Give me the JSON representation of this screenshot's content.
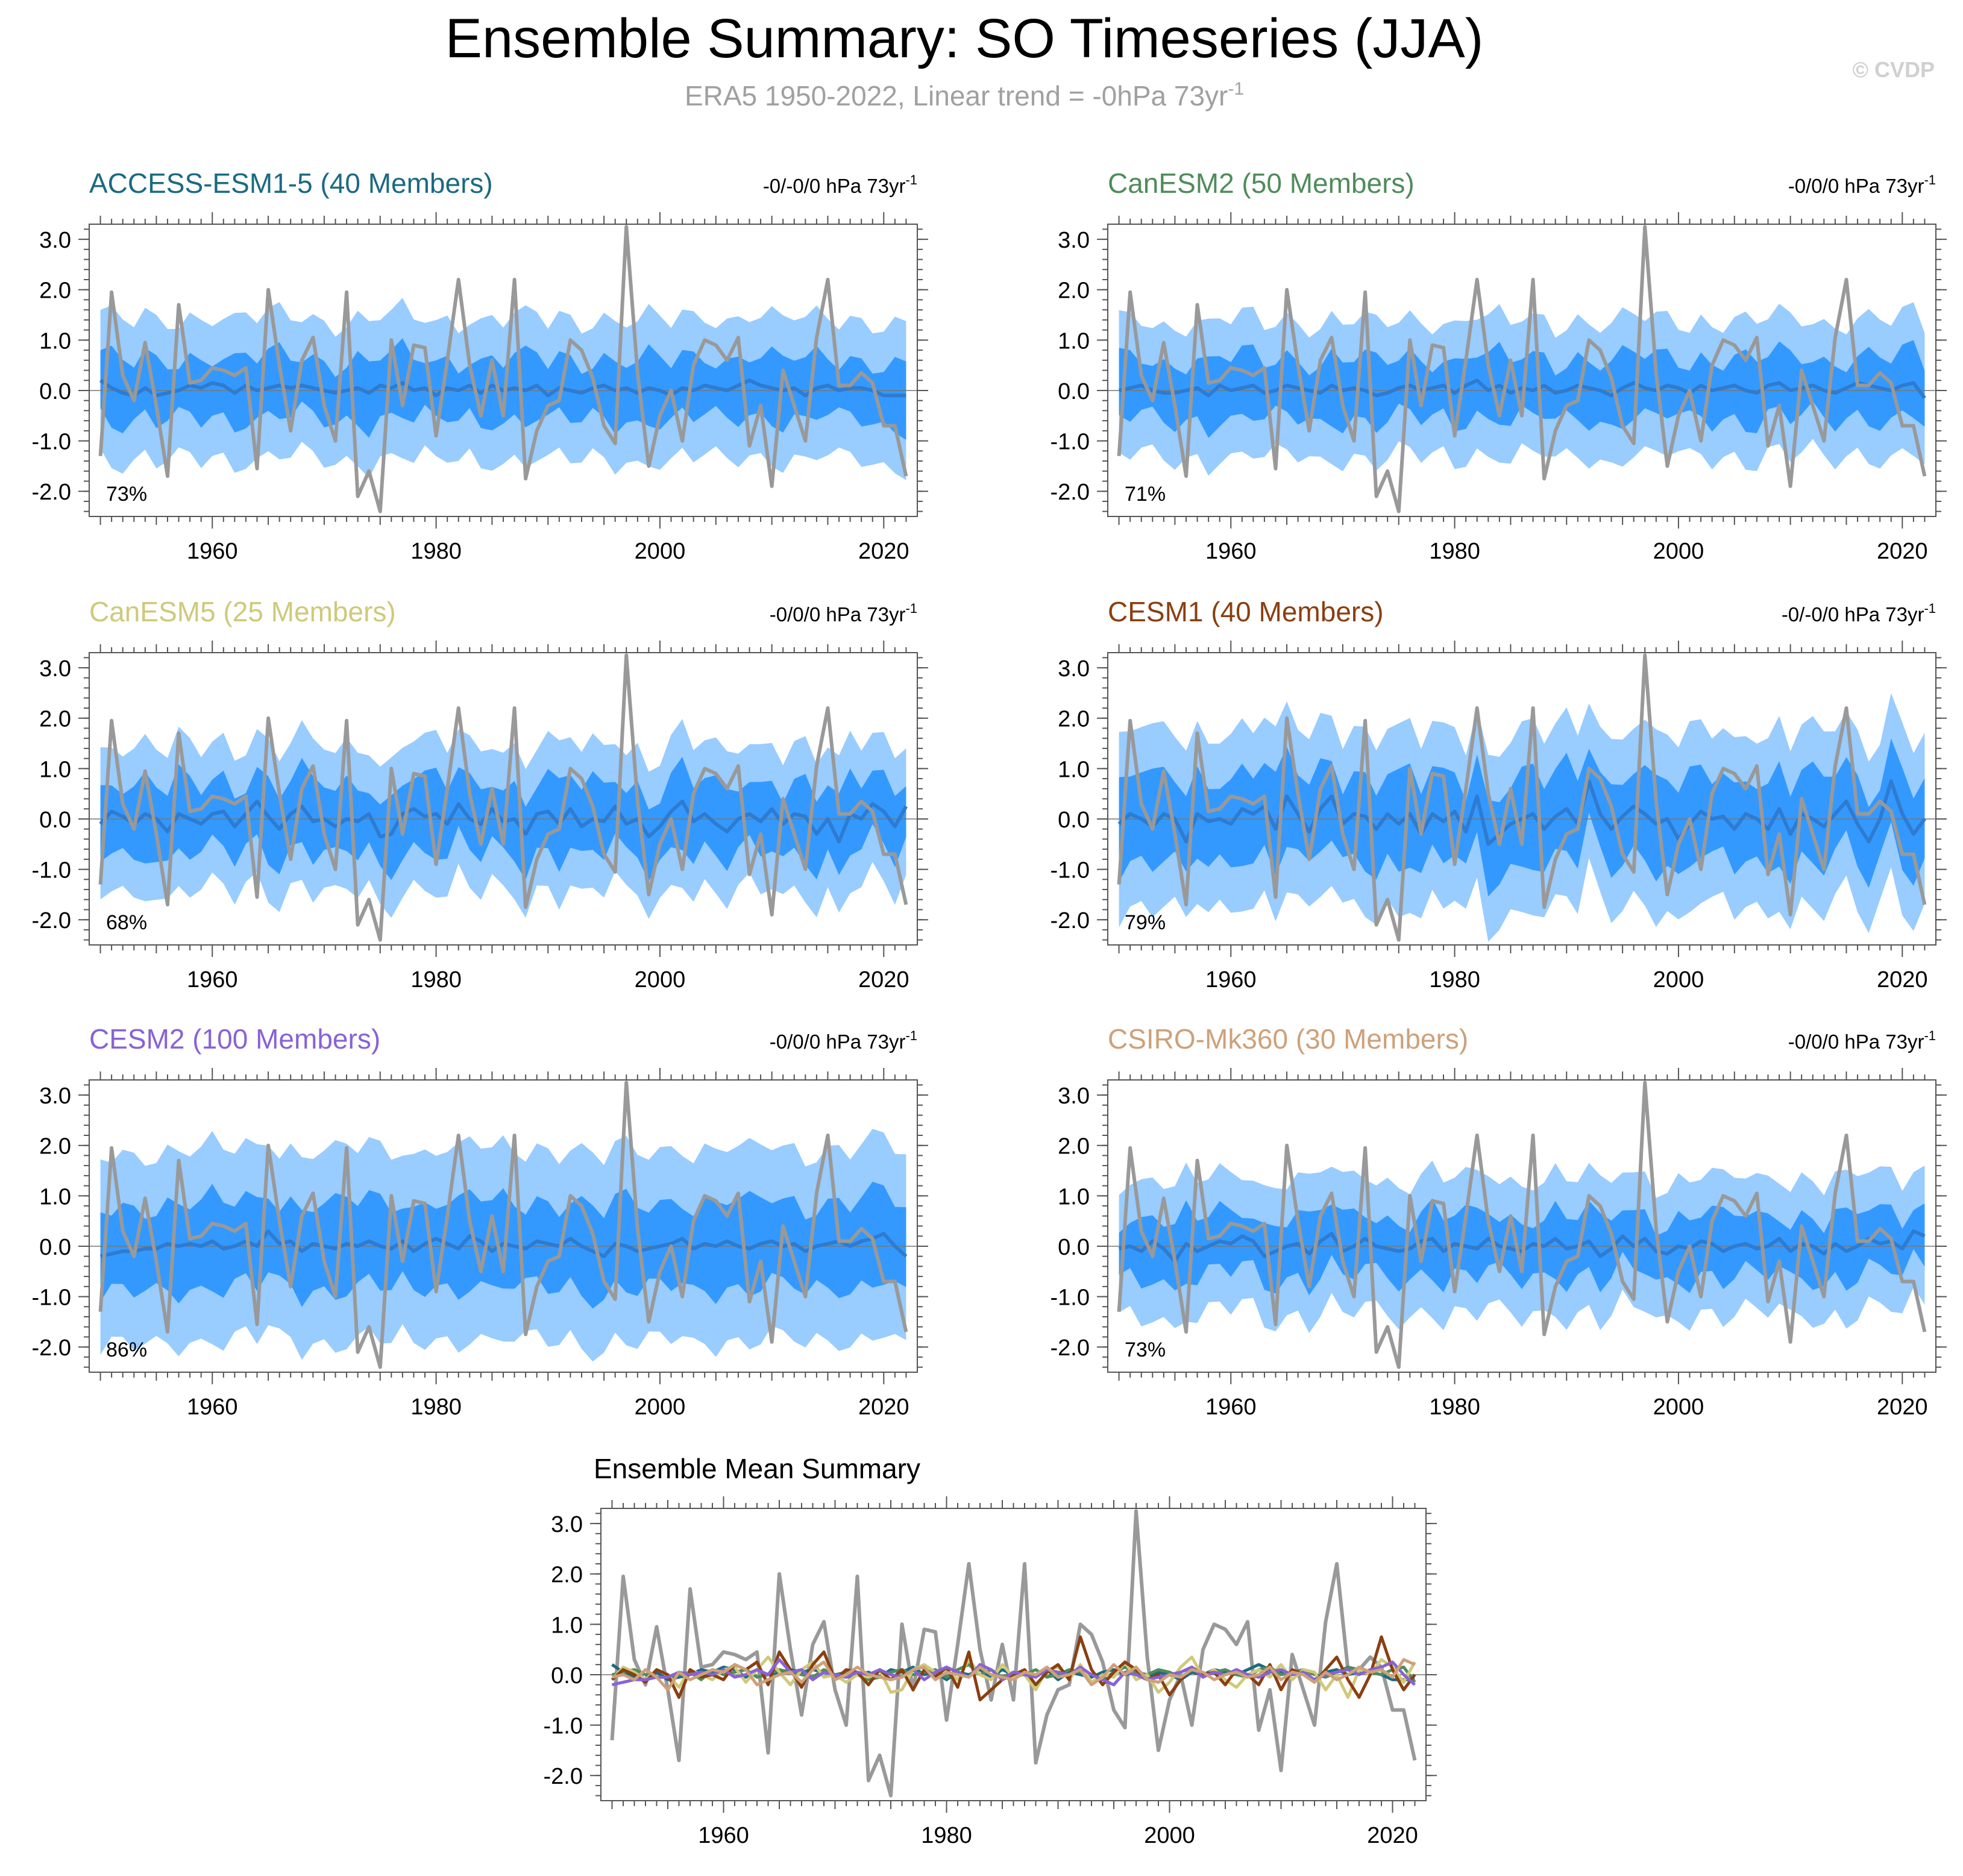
{
  "header": {
    "title": "Ensemble Summary: SO Timeseries (JJA)",
    "subtitle": "ERA5 1950-2022, Linear trend = -0hPa 73yr",
    "subtitle_sup": "-1",
    "copyright": "© CVDP"
  },
  "colors": {
    "outer_band": "#99ccff",
    "inner_band": "#3399ff",
    "ensemble_mean": "#2e7bd0",
    "observations": "#999999",
    "frame": "#555555"
  },
  "chart_data": [
    {
      "type": "area",
      "name": "ACCESS-ESM1-5 (40 Members)",
      "title_color": "#1b6a82",
      "trend": "-0/-0/0 hPa 73yr",
      "trend_sup": "-1",
      "percent": "73%",
      "x_ticks": [
        "1960",
        "1980",
        "2000",
        "2020"
      ],
      "y_ticks": [
        "3.0",
        "2.0",
        "1.0",
        "0.0",
        "-1.0",
        "-2.0"
      ],
      "xlim": [
        1949,
        2023
      ],
      "ylim": [
        -2.5,
        3.3
      ],
      "outer_half_width": 1.4,
      "inner_half_width": 0.6
    },
    {
      "type": "area",
      "name": "CanESM2 (50 Members)",
      "title_color": "#4f8c5a",
      "trend": "-0/0/0 hPa 73yr",
      "trend_sup": "-1",
      "percent": "71%",
      "x_ticks": [
        "1960",
        "1980",
        "2000",
        "2020"
      ],
      "y_ticks": [
        "3.0",
        "2.0",
        "1.0",
        "0.0",
        "-1.0",
        "-2.0"
      ],
      "xlim": [
        1949,
        2023
      ],
      "ylim": [
        -2.5,
        3.3
      ],
      "outer_half_width": 1.35,
      "inner_half_width": 0.6
    },
    {
      "type": "area",
      "name": "CanESM5 (25 Members)",
      "title_color": "#cfc97a",
      "trend": "-0/0/0 hPa 73yr",
      "trend_sup": "-1",
      "percent": "68%",
      "x_ticks": [
        "1960",
        "1980",
        "2000",
        "2020"
      ],
      "y_ticks": [
        "3.0",
        "2.0",
        "1.0",
        "0.0",
        "-1.0",
        "-2.0"
      ],
      "xlim": [
        1949,
        2023
      ],
      "ylim": [
        -2.5,
        3.3
      ],
      "outer_half_width": 1.45,
      "inner_half_width": 0.7
    },
    {
      "type": "area",
      "name": "CESM1 (40 Members)",
      "title_color": "#8a3f10",
      "trend": "-0/-0/0 hPa 73yr",
      "trend_sup": "-1",
      "percent": "79%",
      "x_ticks": [
        "1960",
        "1980",
        "2000",
        "2020"
      ],
      "y_ticks": [
        "3.0",
        "2.0",
        "1.0",
        "0.0",
        "-1.0",
        "-2.0"
      ],
      "xlim": [
        1949,
        2023
      ],
      "ylim": [
        -2.5,
        3.3
      ],
      "outer_half_width": 1.75,
      "inner_half_width": 0.85
    },
    {
      "type": "area",
      "name": "CESM2 (100 Members)",
      "title_color": "#8862d6",
      "trend": "-0/0/0 hPa 73yr",
      "trend_sup": "-1",
      "percent": "86%",
      "x_ticks": [
        "1960",
        "1980",
        "2000",
        "2020"
      ],
      "y_ticks": [
        "3.0",
        "2.0",
        "1.0",
        "0.0",
        "-1.0",
        "-2.0"
      ],
      "xlim": [
        1949,
        2023
      ],
      "ylim": [
        -2.5,
        3.3
      ],
      "outer_half_width": 1.9,
      "inner_half_width": 0.85
    },
    {
      "type": "area",
      "name": "CSIRO-Mk360 (30 Members)",
      "title_color": "#cda17a",
      "trend": "-0/0/0 hPa 73yr",
      "trend_sup": "-1",
      "percent": "73%",
      "x_ticks": [
        "1960",
        "1980",
        "2000",
        "2020"
      ],
      "y_ticks": [
        "3.0",
        "2.0",
        "1.0",
        "0.0",
        "-1.0",
        "-2.0"
      ],
      "xlim": [
        1949,
        2023
      ],
      "ylim": [
        -2.5,
        3.3
      ],
      "outer_half_width": 1.35,
      "inner_half_width": 0.6
    },
    {
      "type": "line",
      "name": "Ensemble Mean Summary",
      "title_color": "#000000",
      "x_ticks": [
        "1960",
        "1980",
        "2000",
        "2020"
      ],
      "y_ticks": [
        "3.0",
        "2.0",
        "1.0",
        "0.0",
        "-1.0",
        "-2.0"
      ],
      "xlim": [
        1949,
        2023
      ],
      "ylim": [
        -2.5,
        3.3
      ]
    }
  ],
  "observed_series": {
    "start_year": 1950,
    "values": [
      -1.3,
      1.95,
      0.3,
      -0.2,
      0.95,
      -0.3,
      -1.7,
      1.7,
      0.15,
      0.2,
      0.45,
      0.4,
      0.3,
      0.45,
      -1.55,
      2.0,
      0.5,
      -0.8,
      0.6,
      1.05,
      -0.3,
      -1.0,
      1.95,
      -2.1,
      -1.6,
      -2.4,
      1.0,
      -0.3,
      0.9,
      0.85,
      -0.9,
      0.6,
      2.2,
      0.5,
      -0.5,
      0.6,
      -0.5,
      2.2,
      -1.75,
      -0.8,
      -0.3,
      -0.2,
      1.0,
      0.8,
      0.25,
      -0.7,
      -1.05,
      3.25,
      0.35,
      -1.5,
      -0.5,
      0.0,
      -1.0,
      0.5,
      1.0,
      0.9,
      0.6,
      1.05,
      -1.1,
      -0.3,
      -1.9,
      0.4,
      -0.3,
      -1.0,
      1.05,
      2.2,
      0.1,
      0.1,
      0.35,
      0.15,
      -0.7,
      -0.7,
      -1.7
    ]
  },
  "ensemble_means": [
    {
      "name": "ACCESS-ESM1-5",
      "color": "#1b6a82",
      "values": [
        0.2,
        0.05,
        -0.05,
        -0.1,
        0.05,
        -0.1,
        -0.05,
        0.0,
        0.1,
        0.05,
        0.15,
        0.1,
        -0.05,
        0.1,
        0.0,
        0.05,
        0.1,
        0.05,
        0.1,
        0.05,
        0.0,
        -0.05,
        0.0,
        0.05,
        -0.05,
        0.1,
        0.05,
        0.15,
        0.0,
        0.05,
        -0.1,
        0.05,
        0.0,
        0.1,
        -0.05,
        0.1,
        0.0,
        0.05,
        0.0,
        0.1,
        -0.1,
        0.05,
        0.0,
        -0.05,
        0.05,
        0.1,
        0.0,
        0.05,
        -0.05,
        0.05,
        0.0,
        -0.1,
        0.05,
        0.0,
        0.1,
        0.05,
        0.0,
        0.1,
        0.2,
        0.1,
        0.05,
        0.0,
        0.05,
        -0.1,
        0.05,
        0.1,
        0.0,
        0.05,
        0.05,
        0.0,
        -0.1,
        -0.1,
        -0.1
      ]
    },
    {
      "name": "CanESM2",
      "color": "#4f8c5a",
      "values": [
        0.0,
        0.05,
        0.1,
        0.0,
        -0.05,
        -0.05,
        0.0,
        0.05,
        -0.1,
        0.1,
        0.0,
        0.05,
        0.1,
        -0.05,
        0.0,
        0.1,
        0.05,
        0.0,
        -0.05,
        0.1,
        0.0,
        0.05,
        0.0,
        -0.1,
        -0.05,
        0.05,
        0.1,
        0.0,
        0.05,
        0.1,
        -0.05,
        0.1,
        0.2,
        0.0,
        0.1,
        -0.05,
        0.05,
        0.0,
        0.1,
        -0.05,
        0.0,
        0.1,
        0.05,
        0.0,
        -0.1,
        0.05,
        0.15,
        0.05,
        0.0,
        0.1,
        0.05,
        -0.05,
        0.1,
        0.0,
        0.05,
        0.1,
        0.0,
        -0.05,
        0.1,
        0.15,
        0.0,
        0.05,
        0.1,
        0.0,
        -0.05,
        0.05,
        0.15,
        0.1,
        0.05,
        0.0,
        0.1,
        0.15,
        -0.15
      ]
    },
    {
      "name": "CanESM5",
      "color": "#cfc97a",
      "values": [
        -0.1,
        0.15,
        0.05,
        -0.1,
        0.1,
        0.0,
        -0.25,
        0.1,
        0.0,
        -0.1,
        0.1,
        0.15,
        -0.15,
        0.1,
        0.35,
        0.05,
        -0.2,
        0.1,
        0.25,
        -0.05,
        0.0,
        -0.15,
        0.0,
        -0.05,
        0.1,
        -0.35,
        -0.3,
        0.1,
        0.2,
        0.05,
        0.1,
        -0.1,
        0.3,
        0.0,
        -0.1,
        0.2,
        -0.05,
        0.0,
        -0.3,
        0.1,
        0.15,
        -0.1,
        0.2,
        -0.15,
        0.0,
        -0.05,
        0.25,
        -0.1,
        0.0,
        -0.35,
        -0.15,
        0.15,
        0.35,
        -0.05,
        0.1,
        -0.1,
        -0.25,
        0.0,
        0.1,
        -0.05,
        0.2,
        -0.1,
        0.1,
        0.05,
        -0.3,
        0.0,
        -0.45,
        0.1,
        0.0,
        0.3,
        0.15,
        -0.15,
        0.25
      ]
    },
    {
      "name": "CESM1",
      "color": "#8a3f10",
      "values": [
        -0.1,
        0.1,
        0.0,
        -0.15,
        0.1,
        0.0,
        -0.45,
        0.1,
        -0.05,
        0.0,
        -0.1,
        0.2,
        0.1,
        0.25,
        -0.2,
        0.45,
        0.1,
        -0.25,
        0.2,
        0.45,
        -0.1,
        0.1,
        0.05,
        -0.2,
        0.1,
        -0.1,
        0.1,
        -0.3,
        0.1,
        -0.05,
        0.15,
        -0.25,
        0.45,
        -0.5,
        -0.3,
        -0.1,
        0.0,
        0.1,
        -0.2,
        0.05,
        0.2,
        -0.1,
        0.75,
        0.1,
        -0.2,
        0.05,
        0.25,
        0.1,
        -0.1,
        0.0,
        -0.4,
        -0.1,
        0.15,
        0.0,
        0.05,
        -0.2,
        0.1,
        0.0,
        -0.2,
        0.2,
        -0.3,
        0.1,
        0.0,
        -0.15,
        0.1,
        0.35,
        -0.1,
        -0.45,
        0.0,
        0.75,
        0.1,
        -0.3,
        0.0
      ]
    },
    {
      "name": "CESM2",
      "color": "#8862d6",
      "values": [
        -0.2,
        -0.15,
        -0.1,
        -0.1,
        -0.05,
        -0.05,
        0.05,
        0.0,
        0.05,
        0.0,
        0.1,
        -0.05,
        0.0,
        0.1,
        0.0,
        0.3,
        0.05,
        0.1,
        -0.1,
        0.05,
        0.0,
        -0.05,
        0.05,
        0.0,
        0.1,
        0.0,
        -0.05,
        0.1,
        -0.1,
        0.05,
        0.15,
        0.05,
        -0.05,
        0.2,
        0.1,
        -0.1,
        0.05,
        0.0,
        -0.05,
        0.1,
        0.05,
        0.0,
        0.15,
        0.0,
        -0.1,
        -0.2,
        0.05,
        0.0,
        -0.1,
        -0.05,
        0.0,
        0.05,
        0.15,
        -0.05,
        0.05,
        0.0,
        0.1,
        0.0,
        -0.05,
        0.05,
        0.1,
        0.0,
        0.05,
        -0.1,
        0.0,
        0.05,
        0.1,
        0.0,
        0.1,
        0.15,
        0.25,
        0.0,
        -0.2
      ]
    },
    {
      "name": "CSIRO-Mk360",
      "color": "#cda17a",
      "values": [
        -0.05,
        0.0,
        -0.1,
        0.1,
        -0.05,
        -0.3,
        0.05,
        -0.1,
        0.0,
        0.1,
        0.05,
        0.2,
        0.1,
        -0.2,
        -0.1,
        0.0,
        0.05,
        -0.15,
        0.1,
        0.25,
        -0.1,
        0.0,
        0.15,
        0.0,
        -0.05,
        -0.1,
        -0.05,
        0.1,
        0.15,
        -0.1,
        0.05,
        0.0,
        -0.05,
        0.15,
        0.0,
        -0.05,
        -0.1,
        0.05,
        0.0,
        0.15,
        -0.05,
        0.0,
        0.1,
        -0.2,
        -0.05,
        0.2,
        0.0,
        0.15,
        -0.1,
        -0.15,
        0.0,
        -0.05,
        0.1,
        0.05,
        -0.1,
        0.0,
        0.05,
        -0.05,
        0.0,
        0.15,
        -0.1,
        0.05,
        0.0,
        -0.15,
        0.05,
        -0.1,
        0.0,
        0.15,
        0.05,
        0.1,
        -0.05,
        0.3,
        0.2
      ]
    }
  ]
}
